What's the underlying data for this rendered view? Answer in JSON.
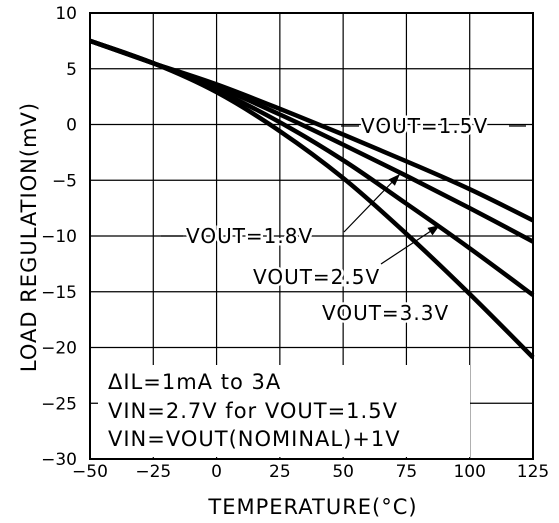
{
  "chart_data": {
    "type": "line",
    "title": "",
    "xlabel": "TEMPERATURE(°C)",
    "ylabel": "LOAD REGULATION(mV)",
    "xlim": [
      -50,
      125
    ],
    "ylim": [
      -30,
      10
    ],
    "xticks": [
      -50,
      -25,
      0,
      25,
      50,
      75,
      100,
      125
    ],
    "yticks": [
      10,
      5,
      0,
      -5,
      -10,
      -15,
      -20,
      -25,
      -30
    ],
    "xtick_labels": [
      "−50",
      "−25",
      "0",
      "25",
      "50",
      "75",
      "100",
      "125"
    ],
    "ytick_labels": [
      "10",
      "5",
      "0",
      "−5",
      "−10",
      "−15",
      "−20",
      "−25",
      "−30"
    ],
    "grid": true,
    "legend": "none",
    "series": [
      {
        "name": "VOUT=1.5V",
        "x": [
          -50,
          -25,
          0,
          25,
          50,
          75,
          100,
          125
        ],
        "y": [
          7.5,
          5.5,
          3.6,
          1.4,
          -0.9,
          -3.3,
          -5.8,
          -8.6
        ]
      },
      {
        "name": "VOUT=1.8V",
        "x": [
          -50,
          -25,
          0,
          25,
          50,
          75,
          100,
          125
        ],
        "y": [
          7.5,
          5.5,
          3.4,
          0.9,
          -1.8,
          -4.6,
          -7.5,
          -10.5
        ]
      },
      {
        "name": "VOUT=2.5V",
        "x": [
          -50,
          -25,
          0,
          25,
          50,
          75,
          100,
          125
        ],
        "y": [
          7.5,
          5.5,
          3.1,
          0.2,
          -3.2,
          -7.1,
          -11.1,
          -15.3
        ]
      },
      {
        "name": "VOUT=3.3V",
        "x": [
          -50,
          -25,
          0,
          25,
          50,
          75,
          100,
          125
        ],
        "y": [
          7.5,
          5.5,
          2.9,
          -0.6,
          -4.8,
          -9.8,
          -15.2,
          -20.9
        ]
      }
    ],
    "annotations": [
      "ΔIL=1mA to 3A",
      "VIN=2.7V for VOUT=1.5V",
      "VIN=VOUT(NOMINAL)+1V"
    ]
  }
}
